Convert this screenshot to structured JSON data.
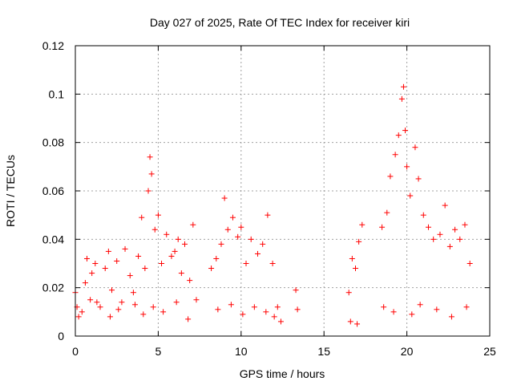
{
  "chart_data": {
    "type": "scatter",
    "title": "Day 027 of 2025, Rate Of TEC Index for receiver kiri",
    "xlabel": "GPS time / hours",
    "ylabel": "ROTI / TECUs",
    "xlim": [
      0,
      25
    ],
    "ylim": [
      0,
      0.12
    ],
    "xticks": [
      0,
      5,
      10,
      15,
      20,
      25
    ],
    "xtick_labels": [
      "0",
      "5",
      "10",
      "15",
      "20",
      "25"
    ],
    "yticks": [
      0,
      0.02,
      0.04,
      0.06,
      0.08,
      0.1,
      0.12
    ],
    "ytick_labels": [
      "0",
      "0.02",
      "0.04",
      "0.06",
      "0.08",
      "0.1",
      "0.12"
    ],
    "grid": true,
    "marker": "+",
    "color": "#ff0000",
    "series": [
      {
        "name": "ROTI",
        "x": [
          0.0,
          0.1,
          0.2,
          0.6,
          0.7,
          0.9,
          1.0,
          1.2,
          1.5,
          1.8,
          2.0,
          2.2,
          2.5,
          2.8,
          3.0,
          3.3,
          3.5,
          3.8,
          4.0,
          4.2,
          4.4,
          4.5,
          4.6,
          4.8,
          5.0,
          5.2,
          5.5,
          5.8,
          6.0,
          6.2,
          6.4,
          6.6,
          6.9,
          7.1,
          7.3,
          8.2,
          8.5,
          8.8,
          9.0,
          9.2,
          9.5,
          9.8,
          10.0,
          10.3,
          10.6,
          11.0,
          11.3,
          11.6,
          11.9,
          12.2,
          12.4,
          13.3,
          13.4,
          16.5,
          16.7,
          16.9,
          17.1,
          17.3,
          18.5,
          18.8,
          19.0,
          19.3,
          19.5,
          19.7,
          19.8,
          19.9,
          20.0,
          20.2,
          20.5,
          20.7,
          21.0,
          21.3,
          21.6,
          22.0,
          22.3,
          22.6,
          22.9,
          23.2,
          23.5,
          23.8,
          0.4,
          1.3,
          2.1,
          2.6,
          3.6,
          4.1,
          4.7,
          5.3,
          6.1,
          6.8,
          8.6,
          9.4,
          10.1,
          10.8,
          11.5,
          12.0,
          16.6,
          17.0,
          18.6,
          19.2,
          20.3,
          20.8,
          21.8,
          22.7,
          23.6
        ],
        "y": [
          0.018,
          0.012,
          0.008,
          0.022,
          0.032,
          0.015,
          0.026,
          0.03,
          0.012,
          0.028,
          0.035,
          0.019,
          0.031,
          0.014,
          0.036,
          0.025,
          0.018,
          0.033,
          0.049,
          0.028,
          0.06,
          0.074,
          0.067,
          0.044,
          0.05,
          0.03,
          0.042,
          0.033,
          0.035,
          0.04,
          0.026,
          0.038,
          0.023,
          0.046,
          0.015,
          0.028,
          0.032,
          0.038,
          0.057,
          0.044,
          0.049,
          0.041,
          0.045,
          0.03,
          0.04,
          0.034,
          0.038,
          0.05,
          0.03,
          0.012,
          0.006,
          0.019,
          0.011,
          0.018,
          0.032,
          0.028,
          0.039,
          0.046,
          0.045,
          0.051,
          0.066,
          0.075,
          0.083,
          0.098,
          0.103,
          0.085,
          0.07,
          0.058,
          0.078,
          0.065,
          0.05,
          0.045,
          0.04,
          0.042,
          0.054,
          0.037,
          0.044,
          0.04,
          0.046,
          0.03,
          0.01,
          0.014,
          0.008,
          0.011,
          0.013,
          0.009,
          0.012,
          0.01,
          0.014,
          0.007,
          0.011,
          0.013,
          0.009,
          0.012,
          0.01,
          0.008,
          0.006,
          0.005,
          0.012,
          0.01,
          0.009,
          0.013,
          0.011,
          0.008,
          0.012
        ]
      }
    ]
  }
}
